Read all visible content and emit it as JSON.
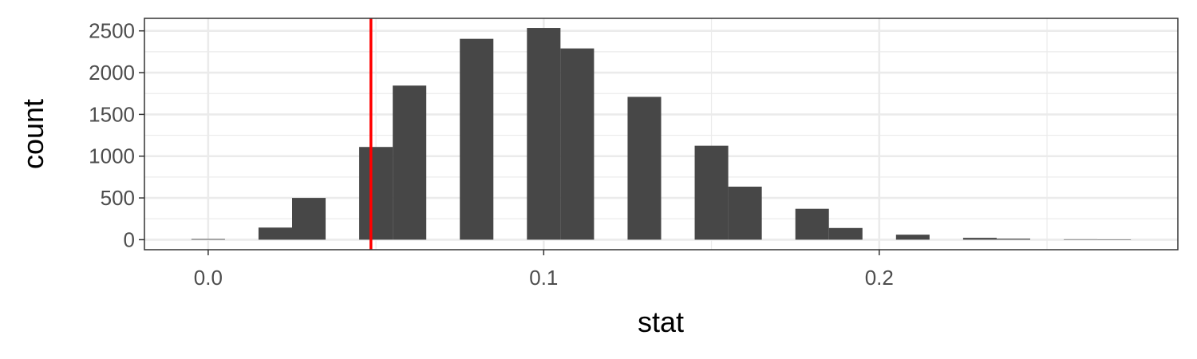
{
  "chart_data": {
    "type": "bar",
    "xlabel": "stat",
    "ylabel": "count",
    "xlim": [
      -0.019,
      0.289
    ],
    "ylim": [
      -120,
      2650
    ],
    "x_ticks": [
      0.0,
      0.1,
      0.2
    ],
    "x_tick_labels": [
      "0.0",
      "0.1",
      "0.2"
    ],
    "y_ticks": [
      0,
      500,
      1000,
      1500,
      2000,
      2500
    ],
    "y_tick_labels": [
      "0",
      "500",
      "1000",
      "1500",
      "2000",
      "2500"
    ],
    "bin_width": 0.01,
    "bins": [
      {
        "x": 0.0,
        "count": 8
      },
      {
        "x": 0.02,
        "count": 145
      },
      {
        "x": 0.03,
        "count": 500
      },
      {
        "x": 0.05,
        "count": 1110
      },
      {
        "x": 0.06,
        "count": 1845
      },
      {
        "x": 0.08,
        "count": 2405
      },
      {
        "x": 0.1,
        "count": 2535
      },
      {
        "x": 0.11,
        "count": 2290
      },
      {
        "x": 0.13,
        "count": 1710
      },
      {
        "x": 0.15,
        "count": 1125
      },
      {
        "x": 0.16,
        "count": 635
      },
      {
        "x": 0.18,
        "count": 370
      },
      {
        "x": 0.19,
        "count": 140
      },
      {
        "x": 0.21,
        "count": 60
      },
      {
        "x": 0.23,
        "count": 22
      },
      {
        "x": 0.24,
        "count": 12
      },
      {
        "x": 0.26,
        "count": 5
      },
      {
        "x": 0.27,
        "count": 3
      }
    ],
    "reference_line": {
      "x": 0.0485,
      "color": "#ff0000"
    },
    "bar_color": "#474747",
    "grid": true,
    "legend": "none"
  }
}
